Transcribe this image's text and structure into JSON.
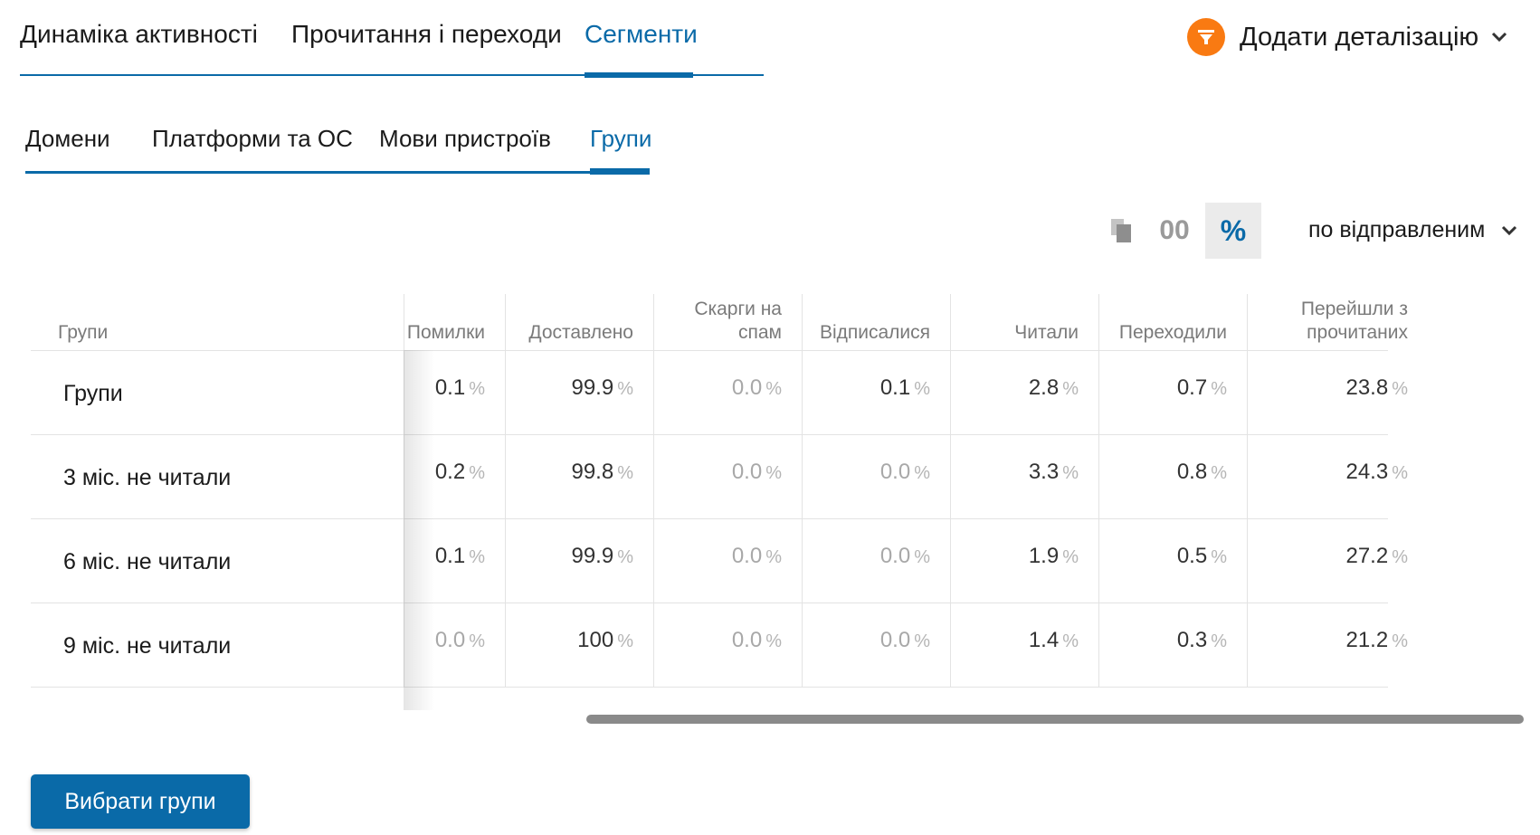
{
  "top_tabs": {
    "items": [
      "Динаміка активності",
      "Прочитання і переходи",
      "Сегменти"
    ],
    "active_index": 2
  },
  "filter": {
    "label": "Додати деталізацію",
    "icon": "funnel-icon",
    "accent_color": "#f97a12"
  },
  "sub_tabs": {
    "items": [
      "Домени",
      "Платформи та ОС",
      "Мови пристроїв",
      "Групи"
    ],
    "active_index": 3
  },
  "toolbar": {
    "copy_icon": "copy-icon",
    "number_toggle": "00",
    "percent_toggle": "%",
    "active_toggle": "percent",
    "sort_label": "по відправленим"
  },
  "table": {
    "columns": [
      "Групи",
      "Помилки",
      "Доставлено",
      "Скарги на спам",
      "Відписалися",
      "Читали",
      "Переходили",
      "Перейшли з прочитаних"
    ],
    "column_lines": [
      [
        "Групи"
      ],
      [
        "Помилки"
      ],
      [
        "Доставлено"
      ],
      [
        "Скарги на",
        "спам"
      ],
      [
        "Відписалися"
      ],
      [
        "Читали"
      ],
      [
        "Переходили"
      ],
      [
        "Перейшли з",
        "прочитаних"
      ]
    ],
    "unit": "%",
    "rows": [
      {
        "label": "Групи",
        "values": [
          "0.1",
          "99.9",
          "0.0",
          "0.1",
          "2.8",
          "0.7",
          "23.8"
        ]
      },
      {
        "label": "3   міс. не читали",
        "values": [
          "0.2",
          "99.8",
          "0.0",
          "0.0",
          "3.3",
          "0.8",
          "24.3"
        ]
      },
      {
        "label": "6   міс. не читали",
        "values": [
          "0.1",
          "99.9",
          "0.0",
          "0.0",
          "1.9",
          "0.5",
          "27.2"
        ]
      },
      {
        "label": "9   міс. не читали",
        "values": [
          "0.0",
          "100",
          "0.0",
          "0.0",
          "1.4",
          "0.3",
          "21.2"
        ]
      }
    ]
  },
  "select_groups_button": "Вибрати групи",
  "colors": {
    "accent": "#0a6aa8",
    "muted": "#a8a8a8"
  }
}
